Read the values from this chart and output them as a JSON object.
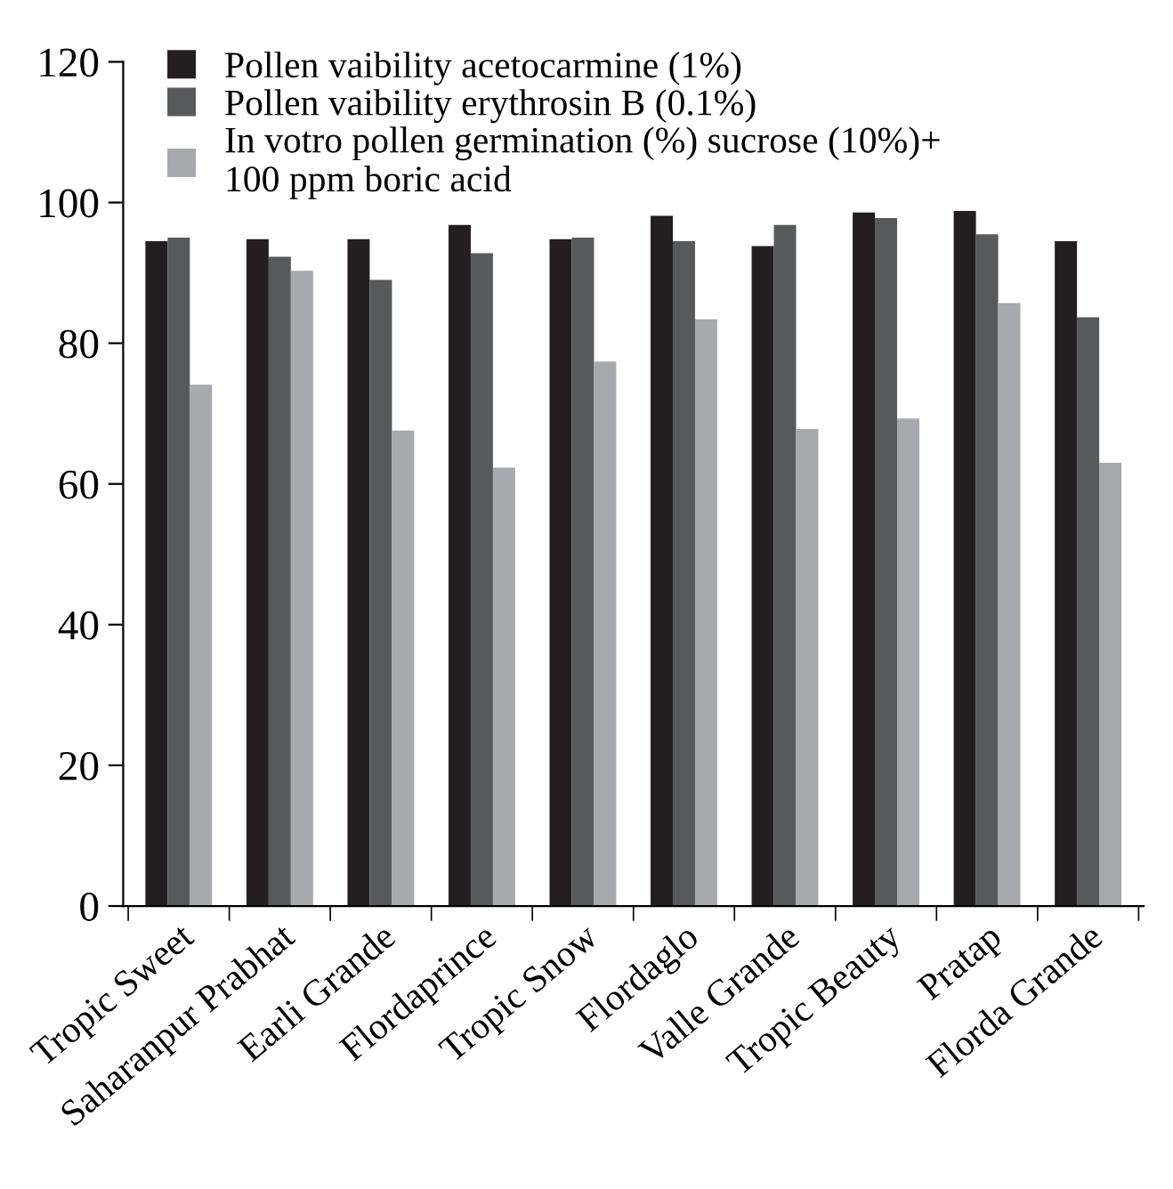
{
  "chart_data": {
    "type": "bar",
    "categories": [
      "Tropic Sweet",
      "Saharanpur Prabhat",
      "Earli Grande",
      "Flordaprince",
      "Tropic Snow",
      "Flordaglo",
      "Valle Grande",
      "Tropic Beauty",
      "Pratap",
      "Florda Grande"
    ],
    "series": [
      {
        "name": "Pollen vaibility acetocarmine (1%)",
        "color": "#231f20",
        "values": [
          94.5,
          94.8,
          94.8,
          96.8,
          94.8,
          98.1,
          93.8,
          98.6,
          98.8,
          94.5
        ]
      },
      {
        "name": "Pollen vaibility erythrosin B (0.1%)",
        "color": "#58595b",
        "values": [
          95.0,
          92.3,
          89.0,
          92.8,
          95.0,
          94.5,
          96.8,
          97.8,
          95.5,
          83.7
        ]
      },
      {
        "name": "In votro pollen germination (%) sucrose (10%)+\n100 ppm boric acid",
        "color": "#a7a9ac",
        "values": [
          74.1,
          90.3,
          67.6,
          62.3,
          77.4,
          83.4,
          67.8,
          69.3,
          85.7,
          63.0
        ]
      }
    ],
    "ylim": [
      0,
      120
    ],
    "yticks": [
      0,
      20,
      40,
      60,
      80,
      100,
      120
    ],
    "grid": false,
    "legend": "top left"
  }
}
